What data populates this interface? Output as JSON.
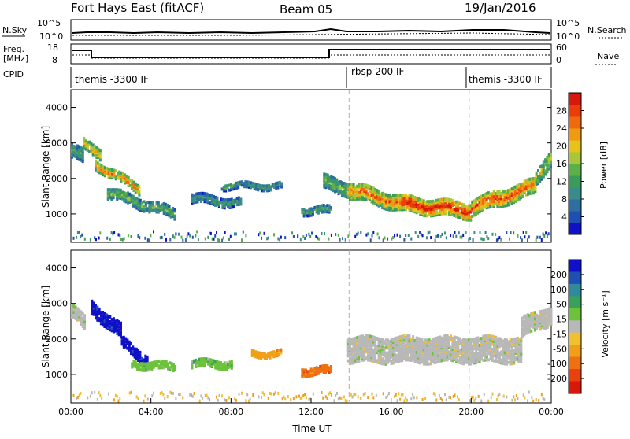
{
  "header": {
    "station": "Fort Hays East (fitACF)",
    "beam": "Beam 05",
    "date": "19/Jan/2016"
  },
  "panels": {
    "nsky": {
      "label": "N.Sky",
      "right_label": "N.Search",
      "left_ticks": [
        "10^5",
        "10^0"
      ],
      "right_ticks": [
        "10^5",
        "10^0"
      ]
    },
    "freq": {
      "label_line1": "Freq.",
      "label_line2": "[MHz]",
      "right_label": "Nave",
      "left_ticks": [
        "18",
        "8"
      ],
      "right_ticks": [
        "60",
        "0"
      ]
    },
    "cpid": {
      "label": "CPID",
      "segments": [
        "themis -3300 IF",
        "rbsp 200 IF",
        "themis -3300 IF"
      ]
    }
  },
  "colors": {
    "power_scale": [
      "#1010c8",
      "#1f4fb3",
      "#2f6fa0",
      "#3a8c8c",
      "#3b9b5a",
      "#5bb04a",
      "#a9c63a",
      "#e6c21a",
      "#f09a12",
      "#ef6a0c",
      "#e93d0a",
      "#d81808"
    ],
    "velocity_scale": [
      "#1010c8",
      "#1f4fb3",
      "#2f8a9c",
      "#3aa05a",
      "#6cc23a",
      "#b8b8b8",
      "#f0c030",
      "#f0a018",
      "#ef7010",
      "#e94010",
      "#d81808"
    ],
    "guide_line": "#b0b0b0"
  },
  "chart_data": [
    {
      "type": "heatmap",
      "name": "power",
      "ylabel": "Slant Range [km]",
      "yticks": [
        "1000",
        "2000",
        "3000",
        "4000"
      ],
      "ylim": [
        200,
        4500
      ],
      "xlim_hours": [
        0,
        24
      ],
      "colorbar": {
        "label": "Power [dB]",
        "ticks": [
          "4",
          "8",
          "12",
          "16",
          "20",
          "24",
          "28"
        ],
        "range": [
          0,
          32
        ]
      },
      "echo_regions": [
        {
          "t0": 0.0,
          "t1": 0.6,
          "r_start": 2800,
          "r_end": 2600,
          "thick": 400,
          "level": 0.35
        },
        {
          "t0": 0.6,
          "t1": 1.5,
          "r_start": 2950,
          "r_end": 2700,
          "thick": 300,
          "level": 0.6
        },
        {
          "t0": 1.2,
          "t1": 3.4,
          "r_start": 2400,
          "r_end": 1700,
          "thick": 250,
          "level": 0.7
        },
        {
          "t0": 1.8,
          "t1": 5.2,
          "r_start": 1600,
          "r_end": 1000,
          "thick": 300,
          "level": 0.4
        },
        {
          "t0": 6.0,
          "t1": 8.5,
          "r_start": 1450,
          "r_end": 1300,
          "thick": 250,
          "level": 0.3
        },
        {
          "t0": 7.5,
          "t1": 10.5,
          "r_start": 1800,
          "r_end": 1800,
          "thick": 180,
          "level": 0.3
        },
        {
          "t0": 11.5,
          "t1": 13.0,
          "r_start": 1100,
          "r_end": 1100,
          "thick": 200,
          "level": 0.35
        },
        {
          "t0": 12.6,
          "t1": 14.0,
          "r_start": 1900,
          "r_end": 1700,
          "thick": 400,
          "level": 0.4
        },
        {
          "t0": 13.8,
          "t1": 16.5,
          "r_start": 1700,
          "r_end": 1300,
          "thick": 450,
          "level": 0.7
        },
        {
          "t0": 16.5,
          "t1": 20.0,
          "r_start": 1300,
          "r_end": 1100,
          "thick": 450,
          "level": 0.85
        },
        {
          "t0": 20.0,
          "t1": 23.2,
          "r_start": 1200,
          "r_end": 1800,
          "thick": 450,
          "level": 0.75
        },
        {
          "t0": 23.2,
          "t1": 24.0,
          "r_start": 2000,
          "r_end": 2700,
          "thick": 450,
          "level": 0.5
        }
      ]
    },
    {
      "type": "heatmap",
      "name": "velocity",
      "ylabel": "Slant Range [km]",
      "xlabel": "Time UT",
      "xticks": [
        "00:00",
        "04:00",
        "08:00",
        "12:00",
        "16:00",
        "20:00",
        "00:00"
      ],
      "yticks": [
        "1000",
        "2000",
        "3000",
        "4000"
      ],
      "ylim": [
        200,
        4500
      ],
      "xlim_hours": [
        0,
        24
      ],
      "colorbar": {
        "label": "Velocity [m s⁻¹]",
        "ticks": [
          "200",
          "100",
          "50",
          "15",
          "-15",
          "-50",
          "-100",
          "-200"
        ]
      },
      "echo_regions": [
        {
          "t0": 0.0,
          "t1": 0.7,
          "r_start": 2800,
          "r_end": 2400,
          "thick": 400,
          "color": 5
        },
        {
          "t0": 1.0,
          "t1": 2.5,
          "r_start": 2900,
          "r_end": 2200,
          "thick": 400,
          "color": 0
        },
        {
          "t0": 2.5,
          "t1": 3.8,
          "r_start": 1900,
          "r_end": 1400,
          "thick": 300,
          "color": 0
        },
        {
          "t0": 3.0,
          "t1": 5.2,
          "r_start": 1300,
          "r_end": 1200,
          "thick": 200,
          "color": 4
        },
        {
          "t0": 6.0,
          "t1": 8.0,
          "r_start": 1300,
          "r_end": 1300,
          "thick": 200,
          "color": 4
        },
        {
          "t0": 9.0,
          "t1": 10.5,
          "r_start": 1600,
          "r_end": 1600,
          "thick": 180,
          "color": 7
        },
        {
          "t0": 11.5,
          "t1": 13.0,
          "r_start": 1100,
          "r_end": 1100,
          "thick": 200,
          "color": 8
        },
        {
          "t0": 13.8,
          "t1": 22.5,
          "r_start": 1700,
          "r_end": 1700,
          "thick": 700,
          "color": 5
        },
        {
          "t0": 22.5,
          "t1": 24.0,
          "r_start": 2300,
          "r_end": 2700,
          "thick": 500,
          "color": 5
        }
      ]
    }
  ]
}
